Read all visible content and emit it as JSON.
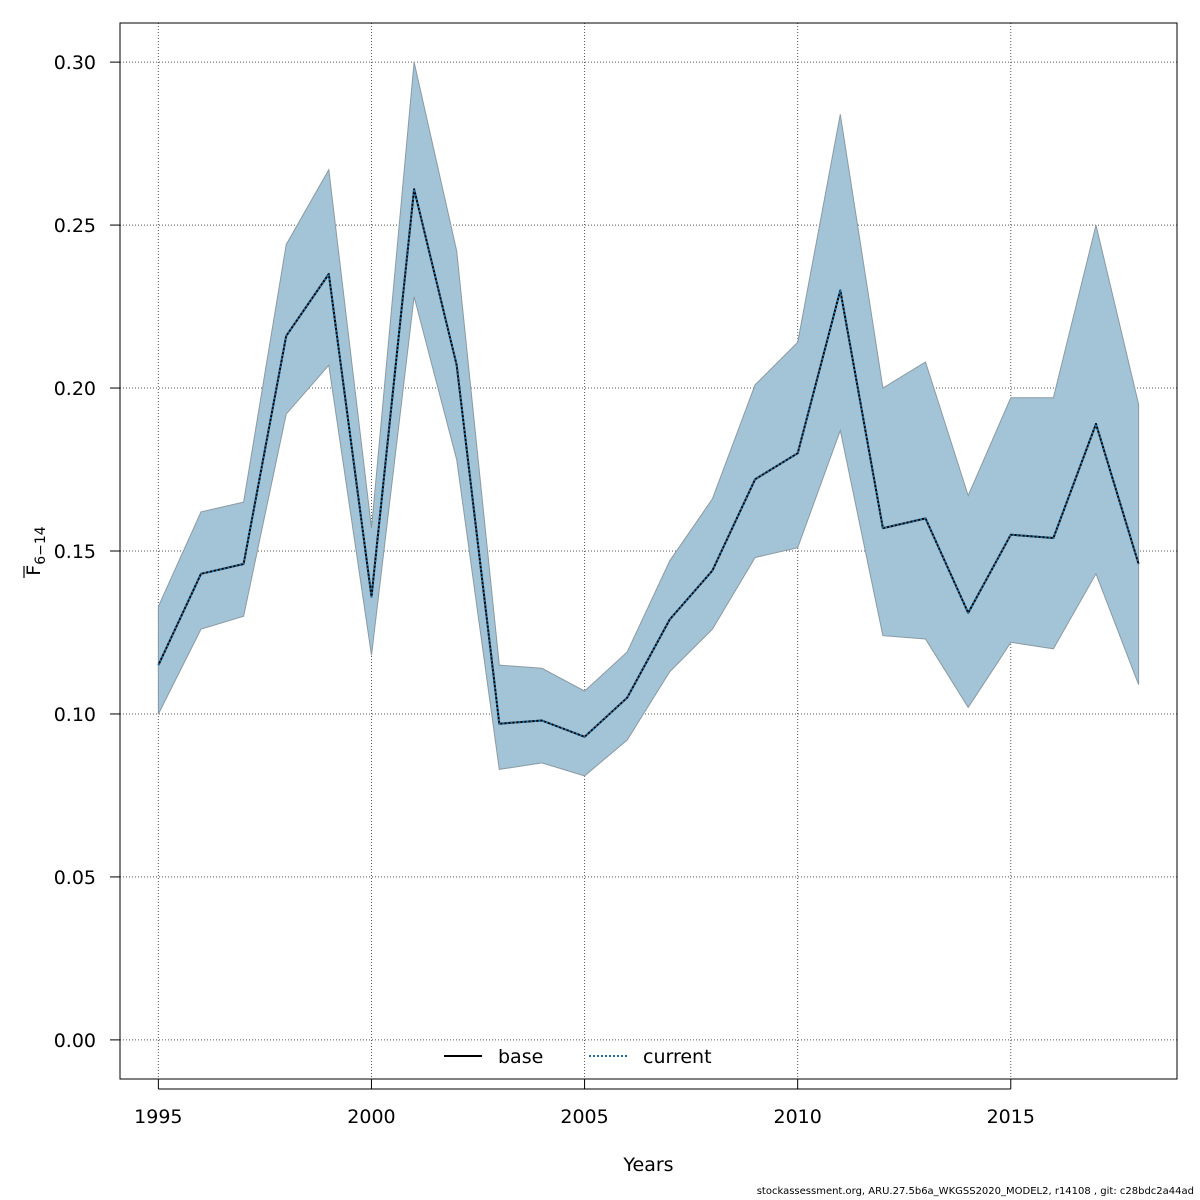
{
  "chart_data": {
    "type": "line",
    "xlabel": "Years",
    "ylabel": {
      "main": "F",
      "sub": "6−14"
    },
    "xlim": [
      1994.1,
      2018.9
    ],
    "ylim": [
      -0.012,
      0.312
    ],
    "x_ticks": [
      1995,
      2000,
      2005,
      2010,
      2015
    ],
    "y_ticks": [
      "0.00",
      "0.05",
      "0.10",
      "0.15",
      "0.20",
      "0.25",
      "0.30"
    ],
    "grid": true,
    "legend_position": "bottom-center",
    "years": [
      1995,
      1996,
      1997,
      1998,
      1999,
      2000,
      2001,
      2002,
      2003,
      2004,
      2005,
      2006,
      2007,
      2008,
      2009,
      2010,
      2011,
      2012,
      2013,
      2014,
      2015,
      2016,
      2017,
      2018
    ],
    "band": {
      "color": "#a3c4d6",
      "upper": [
        0.133,
        0.162,
        0.165,
        0.244,
        0.267,
        0.157,
        0.3,
        0.242,
        0.115,
        0.114,
        0.107,
        0.119,
        0.147,
        0.166,
        0.201,
        0.214,
        0.284,
        0.2,
        0.208,
        0.167,
        0.197,
        0.197,
        0.25,
        0.195
      ],
      "lower": [
        0.1,
        0.126,
        0.13,
        0.192,
        0.207,
        0.118,
        0.228,
        0.178,
        0.083,
        0.085,
        0.081,
        0.092,
        0.113,
        0.126,
        0.148,
        0.151,
        0.187,
        0.124,
        0.123,
        0.102,
        0.122,
        0.12,
        0.143,
        0.109
      ]
    },
    "series": [
      {
        "name": "base",
        "style": "solid",
        "color": "#000000",
        "values": [
          0.115,
          0.143,
          0.146,
          0.216,
          0.235,
          0.136,
          0.261,
          0.207,
          0.097,
          0.098,
          0.093,
          0.105,
          0.129,
          0.144,
          0.172,
          0.18,
          0.23,
          0.157,
          0.16,
          0.131,
          0.155,
          0.154,
          0.189,
          0.146
        ]
      },
      {
        "name": "current",
        "style": "dotted",
        "color": "#1f6fa3",
        "values": [
          0.115,
          0.143,
          0.146,
          0.216,
          0.235,
          0.136,
          0.261,
          0.207,
          0.097,
          0.098,
          0.093,
          0.105,
          0.129,
          0.144,
          0.172,
          0.18,
          0.23,
          0.157,
          0.16,
          0.131,
          0.155,
          0.154,
          0.189,
          0.146
        ]
      }
    ]
  },
  "footer": "stockassessment.org, ARU.27.5b6a_WKGSS2020_MODEL2, r14108 , git: c28bdc2a44ad"
}
